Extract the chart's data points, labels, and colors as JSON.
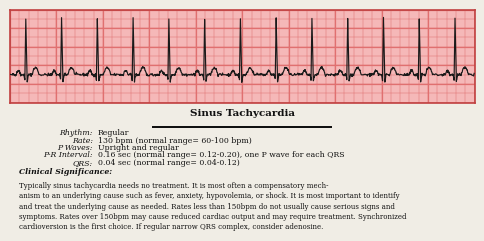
{
  "title": "Sinus Tachycardia",
  "grid_bg": "#f5b8b8",
  "grid_line_color": "#e07070",
  "strip_border_color": "#c04040",
  "ecg_line_color": "#1a1a1a",
  "text_color": "#111111",
  "background_color": "#f0ede5",
  "rhythm_label": "Rhythm:",
  "rhythm_value": "Regular",
  "rate_label": "Rate:",
  "rate_value": "130 bpm (normal range= 60-100 bpm)",
  "pwaves_label": "P Waves:",
  "pwaves_value": "Upright and regular",
  "pr_label": "P-R Interval:",
  "pr_value": "0.16 sec (normal range= 0.12-0.20), one P wave for each QRS",
  "qrs_label": "QRS:",
  "qrs_value": "0.04 sec (normal range= 0.04-0.12)",
  "clinical_label": "Clinical Significance:",
  "clinical_text": "Typically sinus tachycardia needs no treatment. It is most often a compensatory mech-\nanism to an underlying cause such as fever, anxiety, hypovolemia, or shock. It is most important to identify\nand treat the underlying cause as needed. Rates less than 150bpm do not usually cause serious signs and\nsymptoms. Rates over 150bpm may cause reduced cardiac output and may require treatment. Synchronized\ncardioversion is the first choice. If regular narrow QRS complex, consider adenosine."
}
